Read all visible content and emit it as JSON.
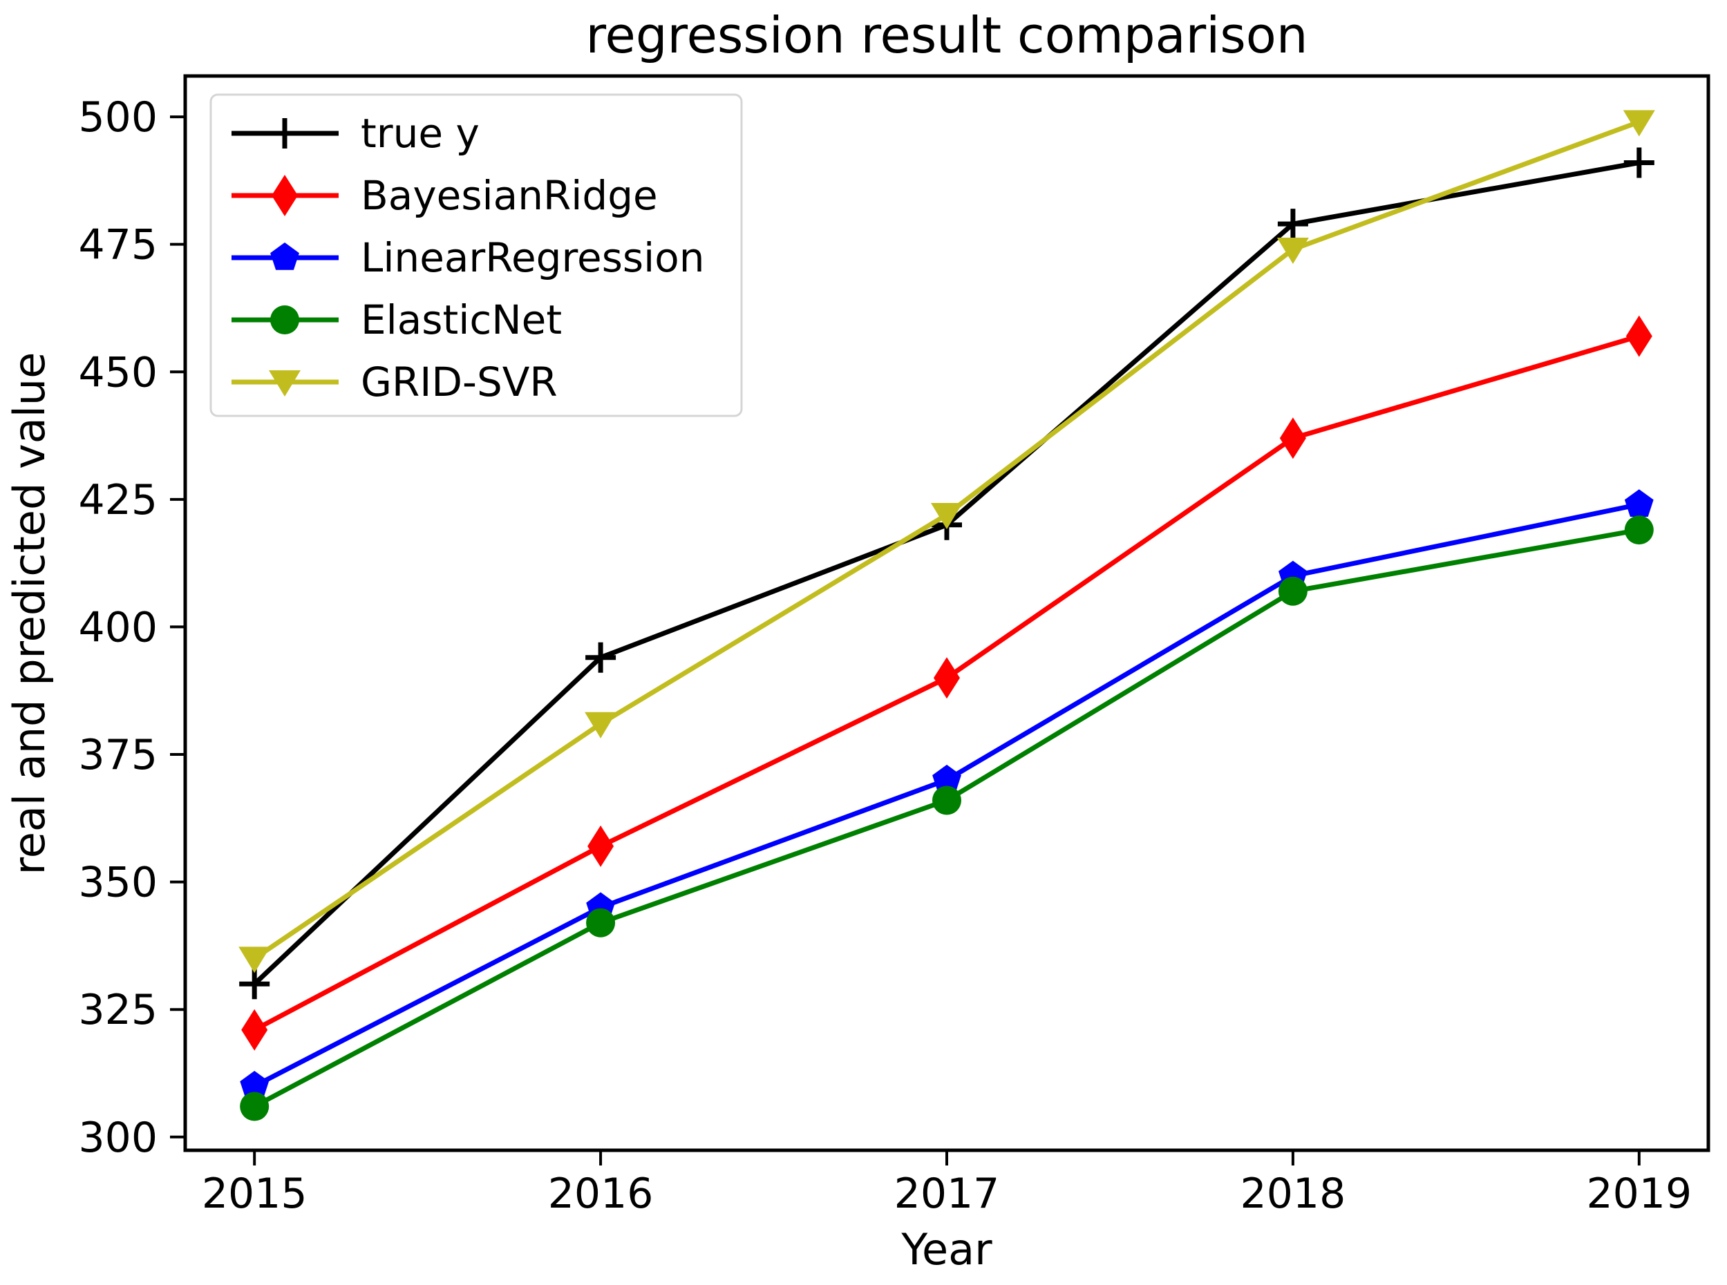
{
  "figure": {
    "title": "regression result comparison",
    "xlabel": "Year",
    "ylabel": "real and predicted value"
  },
  "chart_data": {
    "type": "line",
    "title": "regression result comparison",
    "xlabel": "Year",
    "ylabel": "real and predicted value",
    "x": [
      2015,
      2016,
      2017,
      2018,
      2019
    ],
    "series": [
      {
        "name": "true y",
        "color": "#000000",
        "marker": "plus",
        "values": [
          330,
          394,
          420,
          479,
          491
        ]
      },
      {
        "name": "BayesianRidge",
        "color": "#ff0000",
        "marker": "thin-diamond",
        "values": [
          321,
          357,
          390,
          437,
          457
        ]
      },
      {
        "name": "LinearRegression",
        "color": "#0000ff",
        "marker": "pentagon",
        "values": [
          310,
          345,
          370,
          410,
          424
        ]
      },
      {
        "name": "ElasticNet",
        "color": "#008000",
        "marker": "circle",
        "values": [
          306,
          342,
          366,
          407,
          419
        ]
      },
      {
        "name": "GRID-SVR",
        "color": "#c2bd1f",
        "marker": "triangle-down",
        "values": [
          335,
          381,
          422,
          474,
          499
        ]
      }
    ],
    "xticks": [
      2015,
      2016,
      2017,
      2018,
      2019
    ],
    "yticks": [
      300,
      325,
      350,
      375,
      400,
      425,
      450,
      475,
      500
    ],
    "xlim": [
      2014.8,
      2019.2
    ],
    "ylim": [
      297.4,
      508.0
    ],
    "legend_position": "upper left",
    "grid": false,
    "axis_color": "#000000",
    "background_color": "#ffffff",
    "legend_border_color": "#d5d5d5"
  }
}
